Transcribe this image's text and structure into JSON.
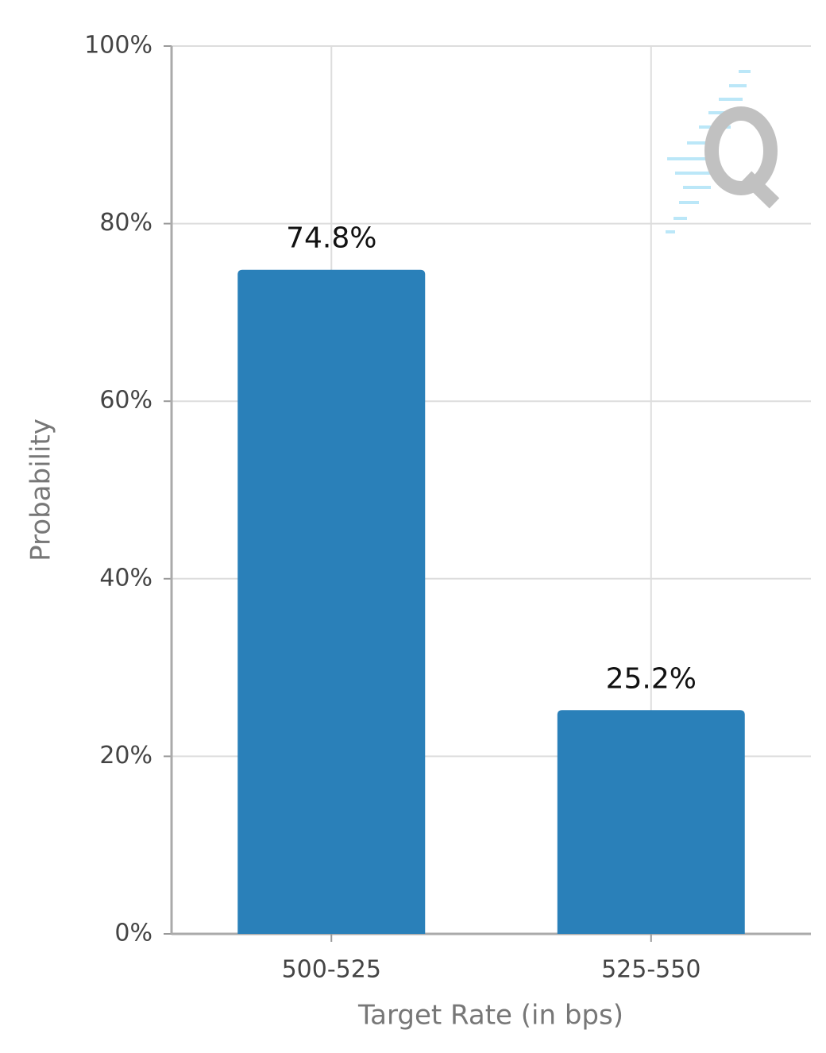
{
  "chart_data": {
    "type": "bar",
    "categories": [
      "500-525",
      "525-550"
    ],
    "values": [
      74.8,
      25.2
    ],
    "value_labels": [
      "74.8%",
      "25.2%"
    ],
    "color": "#2a80b9",
    "ylim": [
      0,
      100
    ],
    "yticks": [
      {
        "value": 0,
        "label": "0%"
      },
      {
        "value": 20,
        "label": "20%"
      },
      {
        "value": 40,
        "label": "40%"
      },
      {
        "value": 60,
        "label": "60%"
      },
      {
        "value": 80,
        "label": "80%"
      },
      {
        "value": 100,
        "label": "100%"
      }
    ],
    "ylabel": "Probability",
    "xlabel": "Target Rate (in bps)",
    "grid": true
  }
}
